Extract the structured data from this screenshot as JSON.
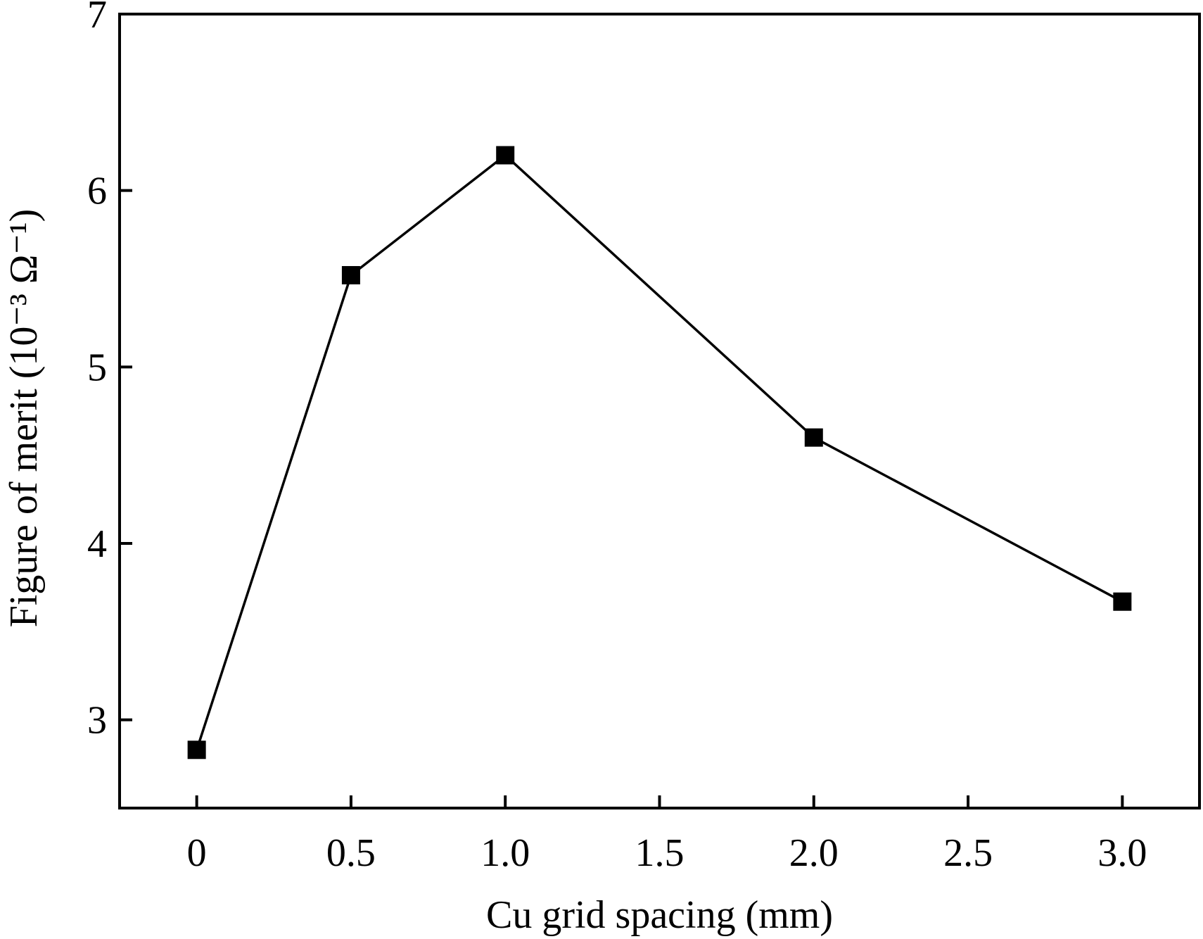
{
  "chart_data": {
    "type": "line",
    "title": "",
    "xlabel": "Cu grid spacing (mm)",
    "ylabel": "Figure of merit (10⁻³ Ω⁻¹)",
    "xlim": [
      -0.25,
      3.25
    ],
    "ylim": [
      2.5,
      7
    ],
    "x_ticks": [
      0,
      0.5,
      1.0,
      1.5,
      2.0,
      2.5,
      3.0
    ],
    "x_tick_labels": [
      "0",
      "0.5",
      "1.0",
      "1.5",
      "2.0",
      "2.5",
      "3.0"
    ],
    "y_ticks": [
      3,
      4,
      5,
      6,
      7
    ],
    "y_tick_labels": [
      "3",
      "4",
      "5",
      "6",
      "7"
    ],
    "grid": false,
    "legend": "none",
    "series": [
      {
        "name": "Figure of merit",
        "marker": "square",
        "color": "#000000",
        "x": [
          0,
          0.5,
          1.0,
          2.0,
          3.0
        ],
        "y": [
          2.83,
          5.52,
          6.2,
          4.6,
          3.67
        ]
      }
    ]
  }
}
